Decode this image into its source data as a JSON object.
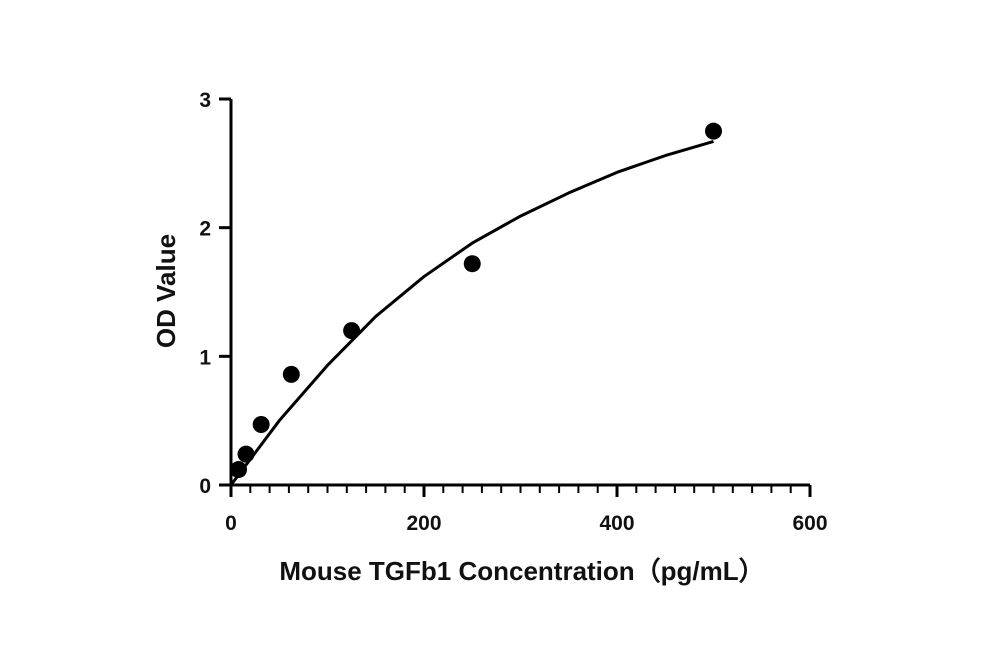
{
  "chart_data": {
    "type": "scatter",
    "title": "",
    "xlabel": "Mouse TGFb1 Concentration（pg/mL）",
    "ylabel": "OD Value",
    "xlim": [
      0,
      600
    ],
    "ylim": [
      0,
      3
    ],
    "x_ticks": [
      0,
      200,
      400,
      600
    ],
    "x_tick_labels": [
      "0",
      "200",
      "400",
      "600"
    ],
    "y_ticks": [
      0,
      1,
      2,
      3
    ],
    "y_tick_labels": [
      "0",
      "1",
      "2",
      "3"
    ],
    "grid": false,
    "legend": "none",
    "series": [
      {
        "points": [
          {
            "x": 7.8,
            "y": 0.12
          },
          {
            "x": 15.6,
            "y": 0.24
          },
          {
            "x": 31.25,
            "y": 0.47
          },
          {
            "x": 62.5,
            "y": 0.86
          },
          {
            "x": 125,
            "y": 1.2
          },
          {
            "x": 250,
            "y": 1.72
          },
          {
            "x": 500,
            "y": 2.75
          }
        ]
      }
    ],
    "fit_curve": {
      "x_range": [
        0,
        500
      ],
      "samples": [
        {
          "x": 0,
          "y": 0.0
        },
        {
          "x": 50,
          "y": 0.5
        },
        {
          "x": 100,
          "y": 0.93
        },
        {
          "x": 150,
          "y": 1.31
        },
        {
          "x": 200,
          "y": 1.62
        },
        {
          "x": 250,
          "y": 1.88
        },
        {
          "x": 300,
          "y": 2.09
        },
        {
          "x": 350,
          "y": 2.27
        },
        {
          "x": 400,
          "y": 2.43
        },
        {
          "x": 450,
          "y": 2.56
        },
        {
          "x": 500,
          "y": 2.67
        }
      ]
    },
    "colors": {
      "points": "#000000",
      "curve": "#000000",
      "axes": "#000000"
    }
  }
}
